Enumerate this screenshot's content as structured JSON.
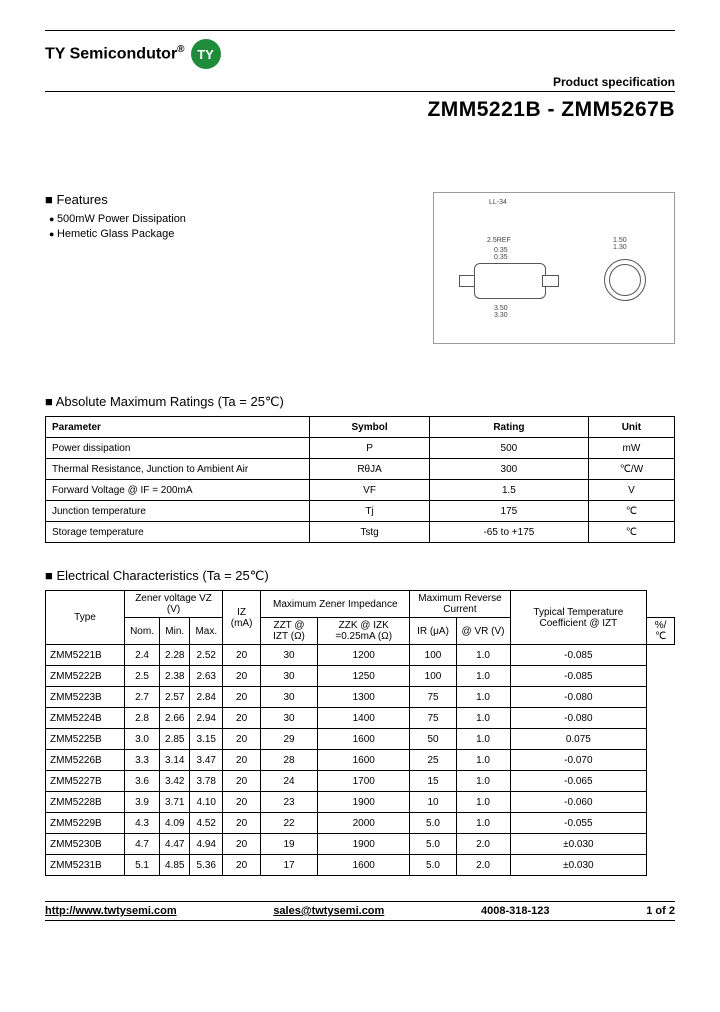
{
  "header": {
    "brand": "TY Semicondutor",
    "logo_text": "TY",
    "logo_bg": "#1e8c3a",
    "spec_label": "Product specification",
    "part_title": "ZMM5221B - ZMM5267B"
  },
  "features": {
    "heading": "Features",
    "items": [
      "500mW Power Dissipation",
      "Hemetic Glass Package"
    ]
  },
  "diagram": {
    "pkg_label": "LL-34",
    "dims": {
      "body_w_top": "2.5REF",
      "band_w1": "0.35",
      "band_w2": "0.35",
      "body_len1": "3.50",
      "body_len2": "3.30",
      "od1": "1.50",
      "od2": "1.30"
    }
  },
  "amr": {
    "heading": "Absolute Maximum Ratings (Ta = 25℃)",
    "columns": [
      "Parameter",
      "Symbol",
      "Rating",
      "Unit"
    ],
    "rows": [
      [
        "Power dissipation",
        "P",
        "500",
        "mW"
      ],
      [
        "Thermal Resistance, Junction to Ambient Air",
        "RθJA",
        "300",
        "℃/W"
      ],
      [
        "Forward Voltage      @ IF = 200mA",
        "VF",
        "1.5",
        "V"
      ],
      [
        "Junction temperature",
        "Tj",
        "175",
        "℃"
      ],
      [
        "Storage temperature",
        "Tstg",
        "-65 to +175",
        "℃"
      ]
    ]
  },
  "ec": {
    "heading": "Electrical Characteristics (Ta = 25℃)",
    "header_row1": [
      "Type",
      "Zener voltage\nVZ (V)",
      "",
      "Maximum Zener\nImpedance",
      "Maximum Reverse\nCurrent",
      "Typical\nTemperature\nCoefficient @ IZT"
    ],
    "header_row2": [
      "Nom.",
      "Min.",
      "Max.",
      "IZ\n(mA)",
      "ZZT @ IZT\n(Ω)",
      "ZZK @ IZK\n=0.25mA\n(Ω)",
      "IR\n(μA)",
      "@ VR  (V)",
      "%/℃"
    ],
    "rows": [
      [
        "ZMM5221B",
        "2.4",
        "2.28",
        "2.52",
        "20",
        "30",
        "1200",
        "100",
        "1.0",
        "-0.085"
      ],
      [
        "ZMM5222B",
        "2.5",
        "2.38",
        "2.63",
        "20",
        "30",
        "1250",
        "100",
        "1.0",
        "-0.085"
      ],
      [
        "ZMM5223B",
        "2.7",
        "2.57",
        "2.84",
        "20",
        "30",
        "1300",
        "75",
        "1.0",
        "-0.080"
      ],
      [
        "ZMM5224B",
        "2.8",
        "2.66",
        "2.94",
        "20",
        "30",
        "1400",
        "75",
        "1.0",
        "-0.080"
      ],
      [
        "ZMM5225B",
        "3.0",
        "2.85",
        "3.15",
        "20",
        "29",
        "1600",
        "50",
        "1.0",
        "0.075"
      ],
      [
        "ZMM5226B",
        "3.3",
        "3.14",
        "3.47",
        "20",
        "28",
        "1600",
        "25",
        "1.0",
        "-0.070"
      ],
      [
        "ZMM5227B",
        "3.6",
        "3.42",
        "3.78",
        "20",
        "24",
        "1700",
        "15",
        "1.0",
        "-0.065"
      ],
      [
        "ZMM5228B",
        "3.9",
        "3.71",
        "4.10",
        "20",
        "23",
        "1900",
        "10",
        "1.0",
        "-0.060"
      ],
      [
        "ZMM5229B",
        "4.3",
        "4.09",
        "4.52",
        "20",
        "22",
        "2000",
        "5.0",
        "1.0",
        "-0.055"
      ],
      [
        "ZMM5230B",
        "4.7",
        "4.47",
        "4.94",
        "20",
        "19",
        "1900",
        "5.0",
        "2.0",
        "±0.030"
      ],
      [
        "ZMM5231B",
        "5.1",
        "4.85",
        "5.36",
        "20",
        "17",
        "1600",
        "5.0",
        "2.0",
        "±0.030"
      ]
    ]
  },
  "footer": {
    "url": "http://www.twtysemi.com",
    "email": "sales@twtysemi.com",
    "phone": "4008-318-123",
    "page": "1 of 2"
  }
}
